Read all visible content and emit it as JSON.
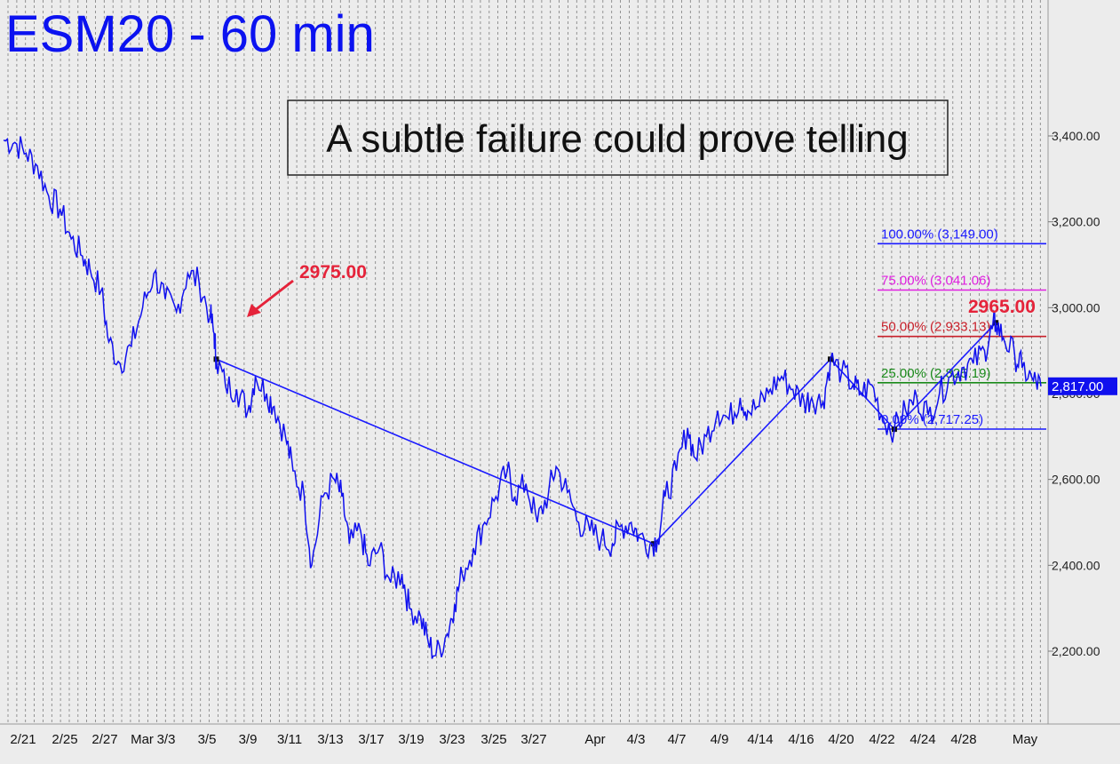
{
  "chart_data": {
    "type": "line",
    "title": "ESM20 - 60 min",
    "headline": "A subtle failure could prove telling",
    "x_tick_labels": [
      "2/21",
      "2/25",
      "2/27",
      "Mar",
      "3/3",
      "3/5",
      "3/9",
      "3/11",
      "3/13",
      "3/17",
      "3/19",
      "3/23",
      "3/25",
      "3/27",
      "Apr",
      "4/3",
      "4/7",
      "4/9",
      "4/14",
      "4/16",
      "4/20",
      "4/22",
      "4/24",
      "4/28",
      "May"
    ],
    "y_tick_labels": [
      "3,400.00",
      "3,200.00",
      "3,000.00",
      "2,800.00",
      "2,600.00",
      "2,400.00",
      "2,200.00"
    ],
    "y_ticks": [
      3400,
      3200,
      3000,
      2800,
      2600,
      2400,
      2200
    ],
    "ylim": [
      2030,
      3660
    ],
    "grid": "vertical dashed",
    "series": [
      {
        "color": "#1010ee",
        "points": [
          [
            0,
            3390
          ],
          [
            1.5,
            3385
          ],
          [
            3,
            3360
          ],
          [
            4.5,
            3330
          ],
          [
            6,
            3260
          ],
          [
            7.5,
            3230
          ],
          [
            9,
            3160
          ],
          [
            10.5,
            3120
          ],
          [
            11.5,
            3090
          ],
          [
            13,
            3040
          ],
          [
            14,
            2920
          ],
          [
            15.5,
            2870
          ],
          [
            17,
            2910
          ],
          [
            18.5,
            3000
          ],
          [
            20,
            3080
          ],
          [
            21.5,
            3020
          ],
          [
            23,
            2990
          ],
          [
            24.5,
            3080
          ],
          [
            26,
            3060
          ],
          [
            27.5,
            2980
          ],
          [
            28,
            2940
          ],
          [
            28.3,
            2880
          ],
          [
            29.5,
            2820
          ],
          [
            31,
            2810
          ],
          [
            32.5,
            2760
          ],
          [
            33.5,
            2840
          ],
          [
            35,
            2800
          ],
          [
            36,
            2770
          ],
          [
            37.5,
            2700
          ],
          [
            38.5,
            2620
          ],
          [
            40,
            2560
          ],
          [
            41,
            2400
          ],
          [
            42.5,
            2560
          ],
          [
            44,
            2600
          ],
          [
            45,
            2560
          ],
          [
            46,
            2450
          ],
          [
            47.5,
            2480
          ],
          [
            48.5,
            2400
          ],
          [
            50,
            2440
          ],
          [
            51.5,
            2360
          ],
          [
            53,
            2380
          ],
          [
            54,
            2300
          ],
          [
            55.5,
            2280
          ],
          [
            56.5,
            2220
          ],
          [
            57.5,
            2190
          ],
          [
            59,
            2240
          ],
          [
            60,
            2310
          ],
          [
            61,
            2380
          ],
          [
            62.5,
            2440
          ],
          [
            64,
            2500
          ],
          [
            65.5,
            2560
          ],
          [
            67,
            2620
          ],
          [
            68,
            2560
          ],
          [
            69.5,
            2590
          ],
          [
            71,
            2500
          ],
          [
            72.5,
            2570
          ],
          [
            73.5,
            2630
          ],
          [
            75,
            2570
          ],
          [
            76.5,
            2500
          ],
          [
            78,
            2480
          ],
          [
            79.5,
            2460
          ],
          [
            81,
            2450
          ],
          [
            82,
            2490
          ],
          [
            83.5,
            2500
          ],
          [
            84.5,
            2470
          ],
          [
            86,
            2450
          ],
          [
            87,
            2460
          ],
          [
            88,
            2560
          ],
          [
            89.5,
            2620
          ],
          [
            91,
            2720
          ],
          [
            92,
            2650
          ],
          [
            93.5,
            2700
          ],
          [
            95,
            2760
          ],
          [
            96.5,
            2740
          ],
          [
            98,
            2790
          ],
          [
            99,
            2760
          ],
          [
            100.5,
            2770
          ],
          [
            102,
            2810
          ],
          [
            103.5,
            2840
          ],
          [
            105,
            2810
          ],
          [
            106.5,
            2780
          ],
          [
            107.5,
            2790
          ],
          [
            109,
            2780
          ],
          [
            110,
            2880
          ],
          [
            111.5,
            2850
          ],
          [
            113,
            2820
          ],
          [
            114,
            2800
          ],
          [
            115.5,
            2820
          ],
          [
            117,
            2740
          ],
          [
            118.5,
            2717
          ],
          [
            120,
            2760
          ],
          [
            121.5,
            2790
          ],
          [
            123,
            2750
          ],
          [
            124.5,
            2800
          ],
          [
            126,
            2840
          ],
          [
            127.5,
            2860
          ],
          [
            129,
            2870
          ],
          [
            130.5,
            2900
          ],
          [
            131.5,
            2950
          ],
          [
            132,
            2965
          ],
          [
            133,
            2930
          ],
          [
            134.5,
            2890
          ],
          [
            135.5,
            2860
          ],
          [
            137,
            2830
          ],
          [
            138,
            2817
          ]
        ]
      }
    ],
    "swing_line": [
      [
        0,
        3390
      ],
      [
        28.3,
        2880
      ],
      [
        86.5,
        2450
      ],
      [
        110,
        2880
      ],
      [
        118.5,
        2717
      ],
      [
        132,
        2965
      ]
    ],
    "fib_levels": [
      {
        "pct_label": "100.00% (3,149.00)",
        "value": 3149.0,
        "color": "#1a1aff"
      },
      {
        "pct_label": "75.00% (3,041.06)",
        "value": 3041.06,
        "color": "#e020e0"
      },
      {
        "pct_label": "50.00% (2,933.13)",
        "value": 2933.13,
        "color": "#c8202a"
      },
      {
        "pct_label": "25.00% (2,825.19)",
        "value": 2825.19,
        "color": "#1a8a1a"
      },
      {
        "pct_label": "0.00% (2,717.25)",
        "value": 2717.25,
        "color": "#1a1aff"
      }
    ],
    "annotations": [
      {
        "text": "2975.00",
        "color": "#e5233a",
        "arrow": true
      },
      {
        "text": "2965.00",
        "color": "#e5233a",
        "arrow": false
      }
    ],
    "last_price_label": "2,817.00",
    "last_price": 2817.0,
    "colors": {
      "line": "#1010ee",
      "title": "#0b12f0",
      "accent": "#e5233a",
      "badge": "#1010ee"
    }
  }
}
